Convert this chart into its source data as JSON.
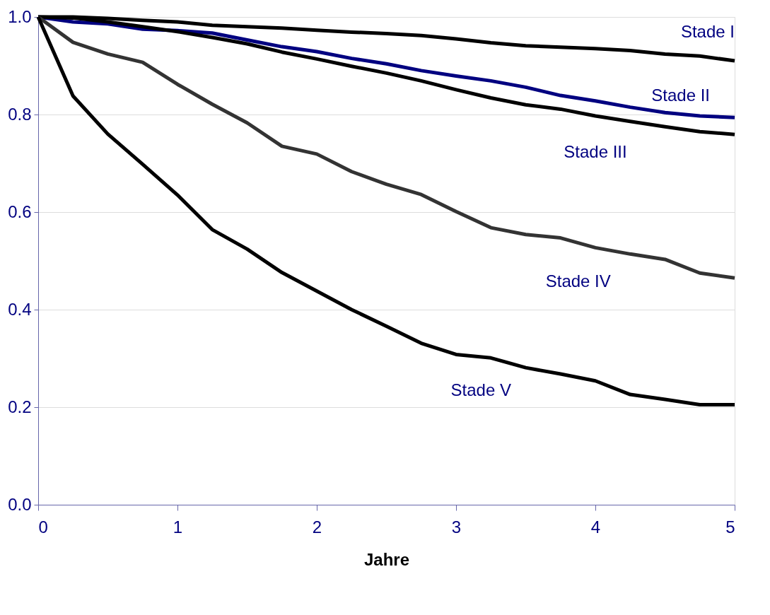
{
  "chart_data": {
    "type": "line",
    "xlabel": "Jahre",
    "x": [
      0,
      0.25,
      0.5,
      0.75,
      1,
      1.25,
      1.5,
      1.75,
      2,
      2.25,
      2.5,
      2.75,
      3,
      3.25,
      3.5,
      3.75,
      4,
      4.25,
      4.5,
      4.75,
      5
    ],
    "series": [
      {
        "name": "Stade I",
        "color": "#000000",
        "values": [
          1.0,
          1.0,
          0.997,
          0.993,
          0.99,
          0.983,
          0.98,
          0.977,
          0.973,
          0.969,
          0.966,
          0.962,
          0.955,
          0.947,
          0.941,
          0.938,
          0.935,
          0.931,
          0.924,
          0.92,
          0.91
        ]
      },
      {
        "name": "Stade II",
        "color": "#000080",
        "values": [
          1.0,
          0.99,
          0.986,
          0.975,
          0.972,
          0.967,
          0.953,
          0.939,
          0.929,
          0.915,
          0.904,
          0.89,
          0.879,
          0.869,
          0.856,
          0.839,
          0.828,
          0.815,
          0.804,
          0.797,
          0.794
        ]
      },
      {
        "name": "Stade III",
        "color": "#000000",
        "values": [
          1.0,
          0.998,
          0.99,
          0.98,
          0.97,
          0.958,
          0.945,
          0.928,
          0.914,
          0.899,
          0.885,
          0.869,
          0.851,
          0.834,
          0.82,
          0.811,
          0.797,
          0.786,
          0.775,
          0.765,
          0.759
        ]
      },
      {
        "name": "Stade IV",
        "color": "#333333",
        "values": [
          1.0,
          0.948,
          0.924,
          0.907,
          0.862,
          0.821,
          0.783,
          0.735,
          0.719,
          0.683,
          0.657,
          0.636,
          0.601,
          0.568,
          0.554,
          0.547,
          0.527,
          0.514,
          0.503,
          0.475,
          0.465
        ]
      },
      {
        "name": "Stade V",
        "color": "#000000",
        "values": [
          1.0,
          0.838,
          0.76,
          0.698,
          0.635,
          0.564,
          0.524,
          0.476,
          0.438,
          0.4,
          0.366,
          0.331,
          0.308,
          0.301,
          0.281,
          0.268,
          0.254,
          0.226,
          0.216,
          0.205,
          0.205
        ]
      }
    ],
    "xlim": [
      0,
      5
    ],
    "xticks": [
      0,
      1,
      2,
      3,
      4,
      5
    ],
    "ylim": [
      0,
      1
    ],
    "yticks": [
      {
        "value": 0,
        "label": "0.0"
      },
      {
        "value": 0.2,
        "label": "0.2"
      },
      {
        "value": 0.4,
        "label": "0.4"
      },
      {
        "value": 0.6,
        "label": "0.6"
      },
      {
        "value": 0.8,
        "label": "0.8"
      },
      {
        "value": 1,
        "label": "1.0"
      }
    ],
    "grid": "y",
    "legend": false,
    "marker": "none",
    "line_style": "solid"
  }
}
